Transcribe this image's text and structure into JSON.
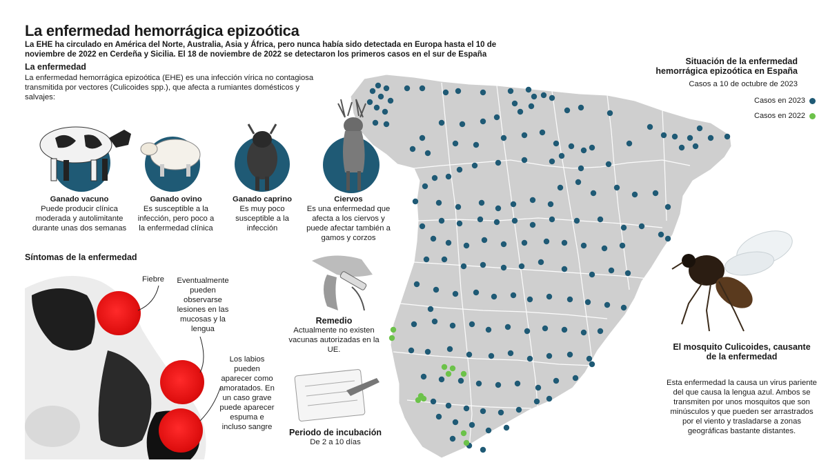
{
  "header": {
    "title": "La enfermedad hemorrágica epizoótica",
    "intro": "La EHE ha circulado en América del Norte, Australia, Asia y África, pero nunca había sido detectada en Europa hasta el 10 de noviembre de 2022 en Cerdeña y Sicilia. El 18 de noviembre de 2022 se detectaron los primeros casos en el sur de España"
  },
  "disease": {
    "heading": "La enfermedad",
    "text": "La enfermedad hemorrágica epizoótica (EHE) es una infección vírica no contagiosa transmitida por vectores (Culicoides spp.), que afecta a rumiantes domésticos y salvajes:"
  },
  "animals": [
    {
      "name": "Ganado vacuno",
      "desc": "Puede producir clínica moderada y autolimitante durante unas dos semanas"
    },
    {
      "name": "Ganado ovino",
      "desc": "Es susceptible a la infección, pero poco a la enfermedad clínica"
    },
    {
      "name": "Ganado caprino",
      "desc": "Es muy poco susceptible a la infección"
    },
    {
      "name": "Ciervos",
      "desc": "Es una enfermedad que afecta a los ciervos y puede afectar también a gamos y corzos"
    }
  ],
  "symptoms": {
    "heading": "Síntomas de la enfermedad",
    "fever": "Fiebre",
    "lesions": "Eventualmente pueden observarse lesiones en las mucosas y la lengua",
    "lips": "Los labios pueden aparecer como amoratados. En un caso grave puede aparecer espuma e incluso sangre"
  },
  "remedy": {
    "title": "Remedio",
    "text": "Actualmente no existen vacunas autorizadas en la UE."
  },
  "incubation": {
    "title": "Periodo de incubación",
    "text": "De 2 a 10 días"
  },
  "map": {
    "title": "Situación de la enfermedad hemorrágica epizoótica en España",
    "subtitle": "Casos a 10 de octubre de 2023",
    "legend_2023": "Casos en 2023",
    "legend_2022": "Casos en 2022",
    "color_2023": "#1f5a75",
    "color_2022": "#6cc24a",
    "land_color": "#cfcfcf"
  },
  "mosquito": {
    "title": "El mosquito Culicoides, causante de la enfermedad",
    "text": "Esta enfermedad la causa un virus pariente del que causa la lengua azul. Ambos se transmiten por unos mosquitos que son minúsculos y que pueden ser arrastrados por el viento y trasladarse a zonas geográficas bastante distantes."
  }
}
